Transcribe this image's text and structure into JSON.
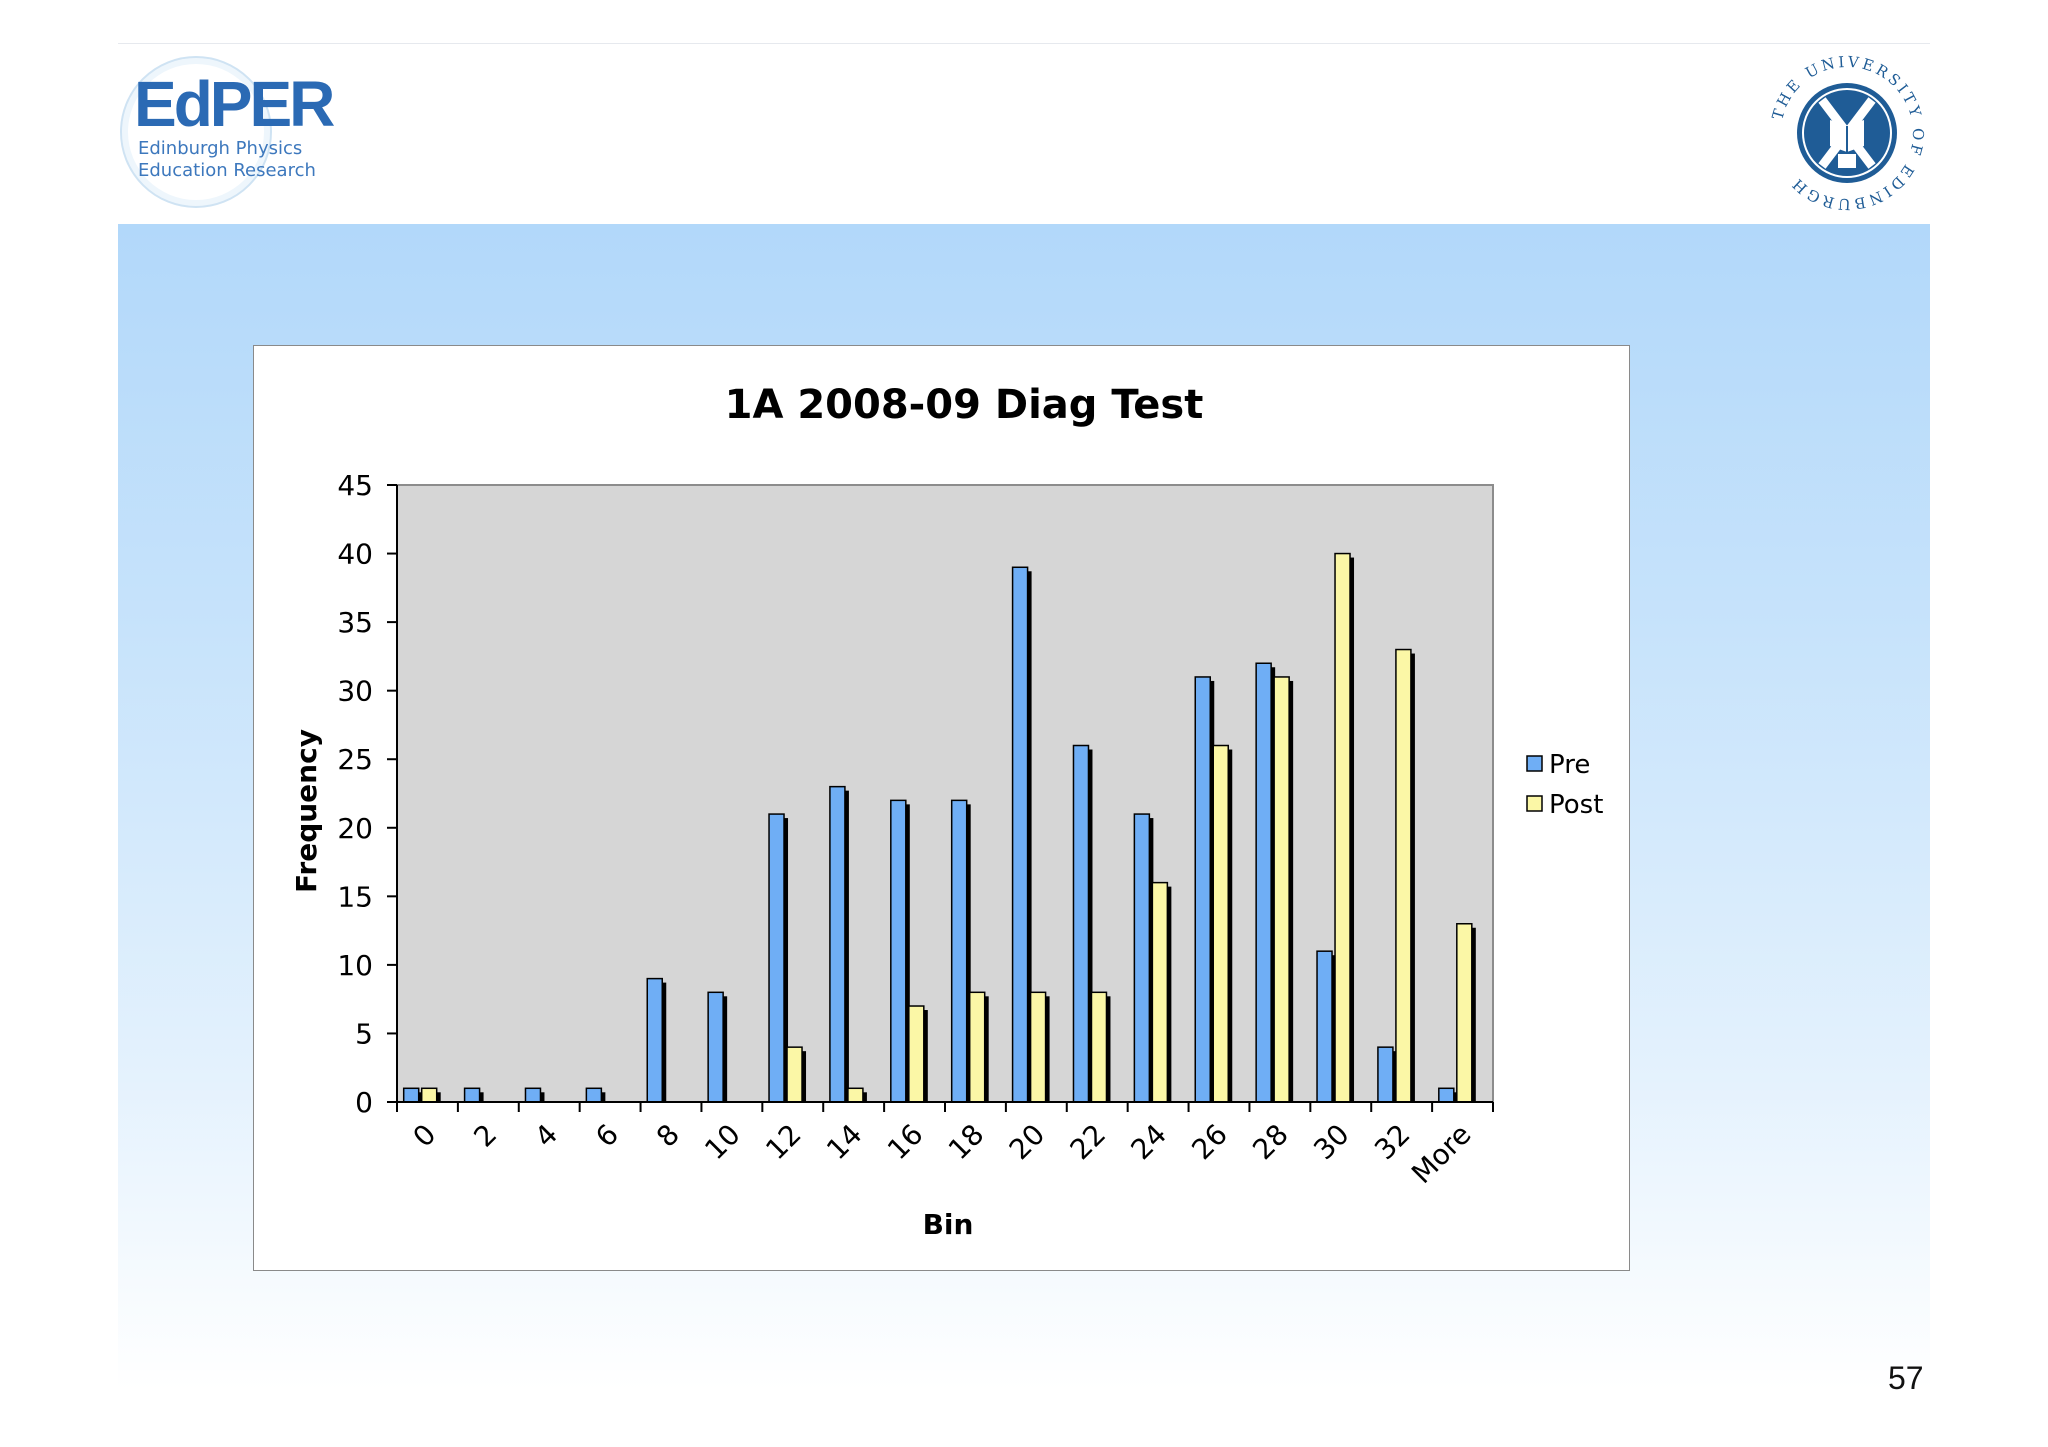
{
  "branding": {
    "edper_logo_text": "EdPER",
    "edper_subtitle_line1": "Edinburgh Physics",
    "edper_subtitle_line2": "Education Research",
    "university_seal_text": "THE UNIVERSITY OF EDINBURGH"
  },
  "colors": {
    "pre": "#6faef5",
    "post": "#fbf7a6",
    "plot_bg": "#d6d6d6",
    "band_top": "#b2d8fa",
    "logo_blue": "#2b6ab4",
    "seal_blue": "#1f5c96"
  },
  "page_number": "57",
  "chart_data": {
    "type": "bar",
    "title": "1A 2008-09 Diag Test",
    "xlabel": "Bin",
    "ylabel": "Frequency",
    "ylim": [
      0,
      45
    ],
    "yticks": [
      0,
      5,
      10,
      15,
      20,
      25,
      30,
      35,
      40,
      45
    ],
    "grid": false,
    "legend_position": "right",
    "categories": [
      "0",
      "2",
      "4",
      "6",
      "8",
      "10",
      "12",
      "14",
      "16",
      "18",
      "20",
      "22",
      "24",
      "26",
      "28",
      "30",
      "32",
      "More"
    ],
    "series": [
      {
        "name": "Pre",
        "values": [
          1,
          1,
          1,
          1,
          9,
          8,
          21,
          23,
          22,
          22,
          39,
          26,
          21,
          31,
          32,
          11,
          4,
          1
        ]
      },
      {
        "name": "Post",
        "values": [
          1,
          0,
          0,
          0,
          0,
          0,
          4,
          1,
          7,
          8,
          8,
          8,
          16,
          26,
          31,
          40,
          33,
          13
        ]
      }
    ]
  }
}
